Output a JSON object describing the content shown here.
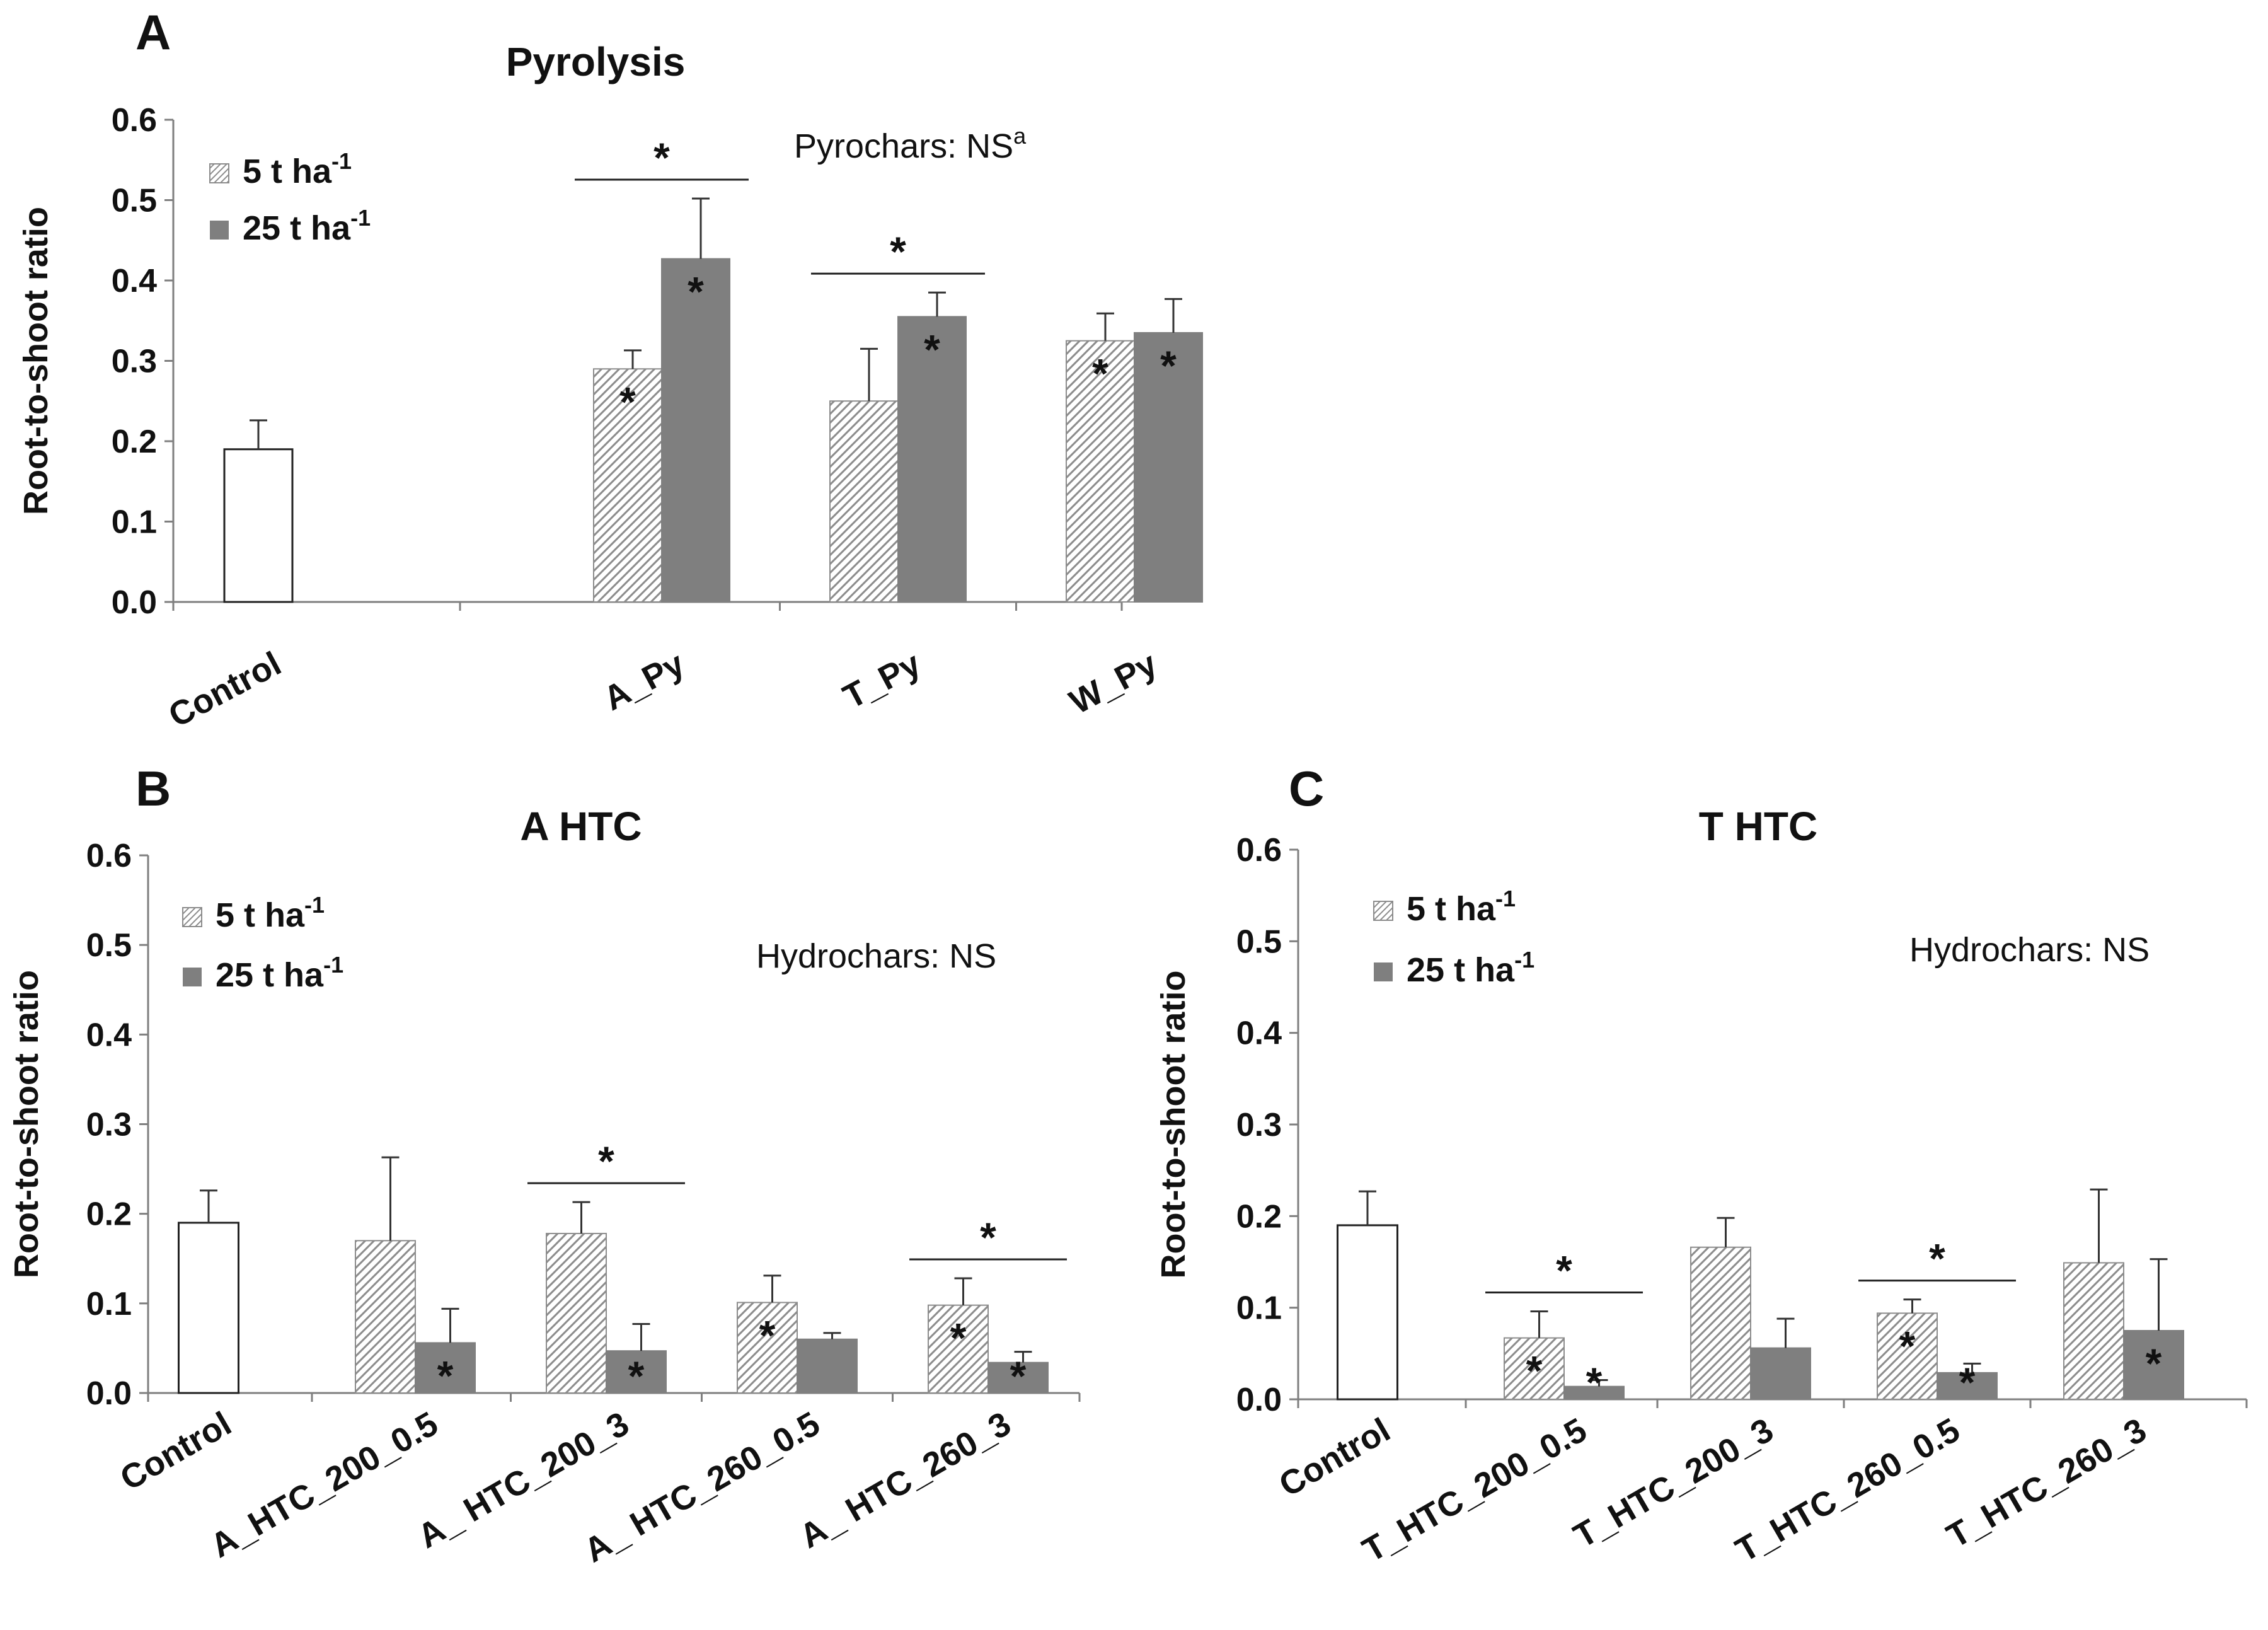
{
  "chart_data": [
    {
      "type": "bar",
      "panel": "A",
      "title": "Pyrolysis",
      "ylabel": "Root-to-shoot ratio",
      "ylim": [
        0,
        0.6
      ],
      "yticks": [
        "0.0",
        "0.1",
        "0.2",
        "0.3",
        "0.4",
        "0.5",
        "0.6"
      ],
      "legend": {
        "5t": "5 t ha",
        "25t": "25 t ha",
        "superscript": "-1"
      },
      "note": "Pyrochars: NS",
      "note_sup": "a",
      "categories": [
        "Control",
        "A_Py",
        "T_Py",
        "W_Py"
      ],
      "control": {
        "value": 0.19,
        "err": 0.036
      },
      "series": [
        {
          "name": "5 t ha-1",
          "values": [
            null,
            0.29,
            0.25,
            0.325
          ],
          "errors": [
            null,
            0.023,
            0.065,
            0.034
          ],
          "stars": [
            false,
            true,
            false,
            true
          ]
        },
        {
          "name": "25 t ha-1",
          "values": [
            null,
            0.427,
            0.355,
            0.335
          ],
          "errors": [
            null,
            0.075,
            0.03,
            0.042
          ],
          "stars": [
            false,
            true,
            true,
            true
          ]
        }
      ],
      "pair_sig": [
        false,
        true,
        true,
        false
      ]
    },
    {
      "type": "bar",
      "panel": "B",
      "title": "A HTC",
      "ylabel": "Root-to-shoot ratio",
      "ylim": [
        0,
        0.6
      ],
      "yticks": [
        "0.0",
        "0.1",
        "0.2",
        "0.3",
        "0.4",
        "0.5",
        "0.6"
      ],
      "legend": {
        "5t": "5 t ha",
        "25t": "25 t ha",
        "superscript": "-1"
      },
      "note": "Hydrochars: NS",
      "note_sup": "",
      "categories": [
        "Control",
        "A_HTC_200_0.5",
        "A_ HTC_200_3",
        "A_ HTC_260_0.5",
        "A_ HTC_260_3"
      ],
      "control": {
        "value": 0.19,
        "err": 0.036
      },
      "series": [
        {
          "name": "5 t ha-1",
          "values": [
            null,
            0.17,
            0.178,
            0.101,
            0.098
          ],
          "errors": [
            null,
            0.093,
            0.035,
            0.03,
            0.03
          ],
          "stars": [
            false,
            false,
            false,
            true,
            true
          ]
        },
        {
          "name": "25 t ha-1",
          "values": [
            null,
            0.056,
            0.047,
            0.06,
            0.034
          ],
          "errors": [
            null,
            0.038,
            0.03,
            0.007,
            0.012
          ],
          "stars": [
            false,
            true,
            true,
            false,
            true
          ]
        }
      ],
      "pair_sig": [
        false,
        false,
        true,
        false,
        true
      ]
    },
    {
      "type": "bar",
      "panel": "C",
      "title": "T HTC",
      "ylabel": "Root-to-shoot ratio",
      "ylim": [
        0,
        0.6
      ],
      "yticks": [
        "0.0",
        "0.1",
        "0.2",
        "0.3",
        "0.4",
        "0.5",
        "0.6"
      ],
      "legend": {
        "5t": "5 t ha",
        "25t": "25 t ha",
        "superscript": "-1"
      },
      "note": "Hydrochars: NS",
      "note_sup": "",
      "categories": [
        "Control",
        "T_HTC_200_0.5",
        "T_HTC_200_3",
        "T_HTC_260_0.5",
        "T_HTC_260_3"
      ],
      "control": {
        "value": 0.19,
        "err": 0.037
      },
      "series": [
        {
          "name": "5 t ha-1",
          "values": [
            null,
            0.067,
            0.166,
            0.094,
            0.149
          ],
          "errors": [
            null,
            0.029,
            0.032,
            0.015,
            0.08
          ],
          "stars": [
            false,
            true,
            false,
            true,
            false
          ]
        },
        {
          "name": "25 t ha-1",
          "values": [
            null,
            0.014,
            0.056,
            0.029,
            0.075
          ],
          "errors": [
            null,
            0.007,
            0.032,
            0.01,
            0.078
          ],
          "stars": [
            false,
            true,
            false,
            true,
            true
          ]
        }
      ],
      "pair_sig": [
        false,
        true,
        false,
        true,
        false
      ]
    }
  ],
  "styles": {
    "bar_dark": "#7f7f7f",
    "hatch_line": "#8c8c8c",
    "axis": "#7f7f7f",
    "text": "#111111"
  }
}
